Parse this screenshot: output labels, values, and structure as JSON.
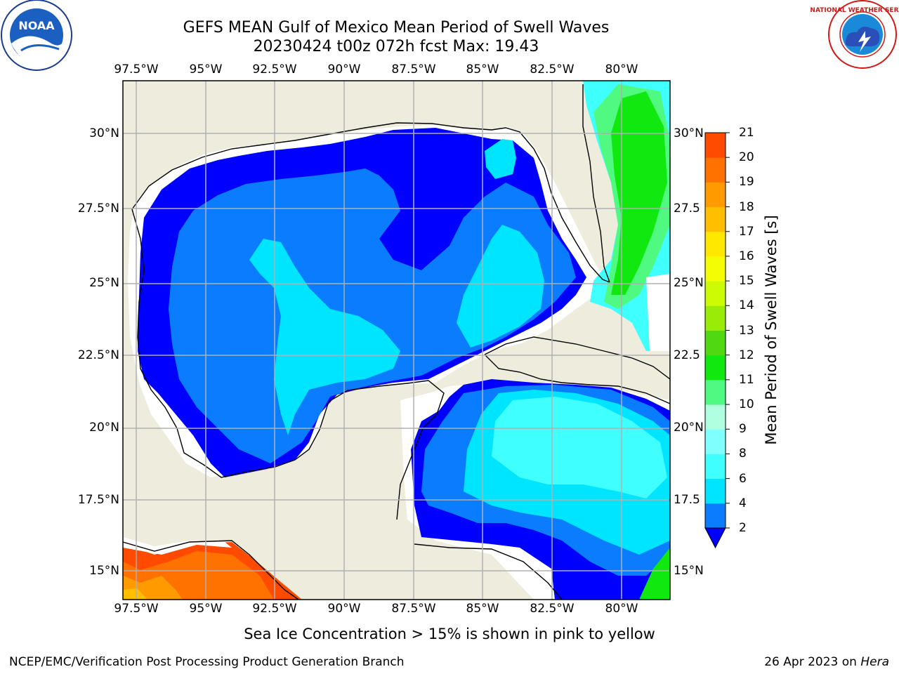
{
  "title": {
    "line1": "GEFS MEAN Gulf of Mexico Mean Period of Swell Waves",
    "line2": "20230424 t00z 072h fcst   Max: 19.43"
  },
  "logos": {
    "noaa": {
      "text": "NOAA",
      "icon": "noaa-logo-icon"
    },
    "nws": {
      "text": "NATIONAL WEATHER SERVICE",
      "icon": "nws-logo-icon"
    }
  },
  "map": {
    "lon_labels": [
      "97.5°W",
      "95°W",
      "92.5°W",
      "90°W",
      "87.5°W",
      "85°W",
      "82.5°W",
      "80°W"
    ],
    "lat_labels_left": [
      "30°N",
      "27.5°N",
      "25°N",
      "22.5°N",
      "20°N",
      "17.5°N",
      "15°N"
    ],
    "lat_labels_right": [
      "30°N",
      "27.5",
      "25°N",
      "22.5",
      "20°N",
      "17.5",
      "15°N"
    ],
    "extent": {
      "lon_min": -98.0,
      "lon_max": -78.4,
      "lat_min": 14.0,
      "lat_max": 31.8
    },
    "colors": {
      "land": "#eeecdc",
      "ocean_nodata": "#ffffff",
      "grid": "#b0b0b0"
    }
  },
  "colorbar": {
    "title": "Mean Period of Swell Waves [s]",
    "ticks": [
      "2",
      "4",
      "6",
      "8",
      "9",
      "10",
      "11",
      "12",
      "13",
      "14",
      "15",
      "16",
      "17",
      "18",
      "19",
      "20",
      "21"
    ],
    "colors": [
      "#0a7dff",
      "#00e5ff",
      "#40ffff",
      "#80ffff",
      "#b0ffe0",
      "#50fa80",
      "#10e810",
      "#50d810",
      "#98ec08",
      "#cdfb05",
      "#f5fd05",
      "#ffe800",
      "#ffbe00",
      "#ff9b00",
      "#ff7200",
      "#ff4a00",
      "#ff1e00"
    ],
    "under_color": "#0000ff"
  },
  "ice_note": "Sea Ice Concentration > 15% is shown in pink to yellow",
  "footer": {
    "left": "NCEP/EMC/Verification Post Processing Product Generation Branch",
    "date": "26 Apr 2023 on ",
    "host": "Hera"
  }
}
